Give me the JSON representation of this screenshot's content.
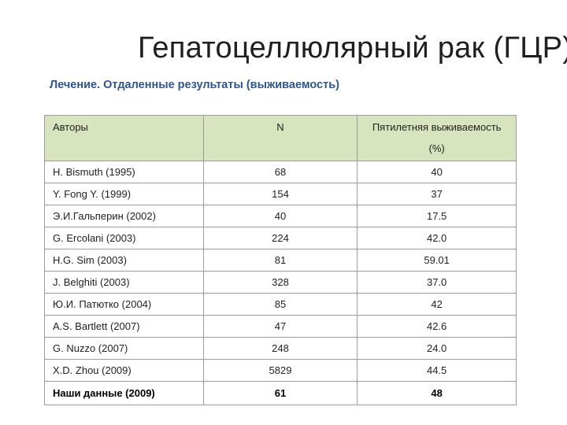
{
  "title": "Гепатоцеллюлярный рак (ГЦР)",
  "subtitle": "Лечение. Отдаленные результаты (выживаемость)",
  "table": {
    "headers": {
      "authors": "Авторы",
      "n": "N",
      "survival_line1": "Пятилетняя выживаемость",
      "survival_line2": "(%)"
    },
    "rows": [
      {
        "author": "H. Bismuth (1995)",
        "n": "68",
        "survival": "40"
      },
      {
        "author": "Y. Fong Y. (1999)",
        "n": "154",
        "survival": "37"
      },
      {
        "author": "Э.И.Гальперин (2002)",
        "n": "40",
        "survival": "17.5"
      },
      {
        "author": "G. Ercolani (2003)",
        "n": "224",
        "survival": "42.0"
      },
      {
        "author": "H.G. Sim (2003)",
        "n": "81",
        "survival": "59.01"
      },
      {
        "author": "J. Belghiti (2003)",
        "n": "328",
        "survival": "37.0"
      },
      {
        "author": "Ю.И. Патютко (2004)",
        "n": "85",
        "survival": "42"
      },
      {
        "author": "A.S. Bartlett (2007)",
        "n": "47",
        "survival": "42.6"
      },
      {
        "author": "G. Nuzzo (2007)",
        "n": "248",
        "survival": "24.0"
      },
      {
        "author": "X.D. Zhou (2009)",
        "n": "5829",
        "survival": "44.5"
      },
      {
        "author": "Наши данные (2009)",
        "n": "61",
        "survival": "48"
      }
    ]
  }
}
